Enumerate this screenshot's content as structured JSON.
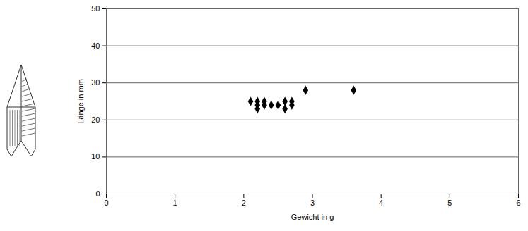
{
  "chart_data": {
    "type": "scatter",
    "x_label": "Gewicht in g",
    "y_label": "Länge in mm",
    "x": [
      2.1,
      2.2,
      2.2,
      2.2,
      2.3,
      2.3,
      2.4,
      2.5,
      2.6,
      2.6,
      2.7,
      2.7,
      2.9,
      3.6
    ],
    "values": [
      25,
      25,
      24,
      23,
      25,
      24,
      24,
      24,
      25,
      23,
      24,
      25,
      28,
      28
    ],
    "color": "#000000",
    "marker": "diamond",
    "xlim": [
      0,
      6
    ],
    "xticks": [
      0,
      1,
      2,
      3,
      4,
      5,
      6
    ],
    "ylim": [
      0,
      50
    ],
    "yticks": [
      0,
      10,
      20,
      30,
      40,
      50
    ],
    "grid": true
  }
}
